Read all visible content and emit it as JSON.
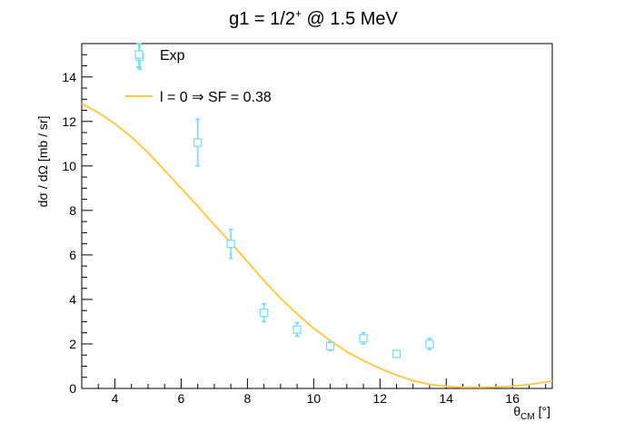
{
  "chart_data": {
    "type": "scatter",
    "title_main": "g1 = 1/2",
    "title_sup": "+",
    "title_rest": " @ 1.5 MeV",
    "ylabel": "dσ / dΩ [mb / sr]",
    "xlabel_main": "θ",
    "xlabel_sub": "CM",
    "xlabel_unit": " [°]",
    "xlim": [
      3,
      17.2
    ],
    "ylim": [
      0,
      15.5
    ],
    "xticks": [
      4,
      6,
      8,
      10,
      12,
      14,
      16
    ],
    "yticks": [
      0,
      2,
      4,
      6,
      8,
      10,
      12,
      14
    ],
    "grid": false,
    "legend_position": "top-left",
    "series": [
      {
        "name": "Exp",
        "kind": "points-with-errors",
        "color": "#7fdcf5",
        "points": [
          {
            "x": 4.75,
            "y": 14.9,
            "err": 0.55
          },
          {
            "x": 6.5,
            "y": 11.05,
            "err": 1.05
          },
          {
            "x": 7.5,
            "y": 6.5,
            "err": 0.65
          },
          {
            "x": 8.5,
            "y": 3.4,
            "err": 0.4
          },
          {
            "x": 9.5,
            "y": 2.65,
            "err": 0.3
          },
          {
            "x": 10.5,
            "y": 1.9,
            "err": 0.2
          },
          {
            "x": 11.5,
            "y": 2.25,
            "err": 0.25
          },
          {
            "x": 12.5,
            "y": 1.55,
            "err": 0.15
          },
          {
            "x": 13.5,
            "y": 2.0,
            "err": 0.25
          }
        ]
      },
      {
        "name": "l = 0 ⇒ SF = 0.38",
        "kind": "curve",
        "color": "#ffc94d",
        "x": [
          3.0,
          3.5,
          4.0,
          4.5,
          5.0,
          5.5,
          6.0,
          6.5,
          7.0,
          7.5,
          8.0,
          8.5,
          9.0,
          9.5,
          10.0,
          10.5,
          11.0,
          11.5,
          12.0,
          12.5,
          13.0,
          13.5,
          14.0,
          14.5,
          15.0,
          15.5,
          16.0,
          16.5,
          17.2
        ],
        "y": [
          12.8,
          12.4,
          11.9,
          11.3,
          10.6,
          9.8,
          9.0,
          8.2,
          7.35,
          6.55,
          5.7,
          4.85,
          4.05,
          3.35,
          2.7,
          2.15,
          1.65,
          1.25,
          0.9,
          0.6,
          0.35,
          0.18,
          0.09,
          0.05,
          0.05,
          0.06,
          0.1,
          0.17,
          0.33
        ]
      }
    ]
  }
}
